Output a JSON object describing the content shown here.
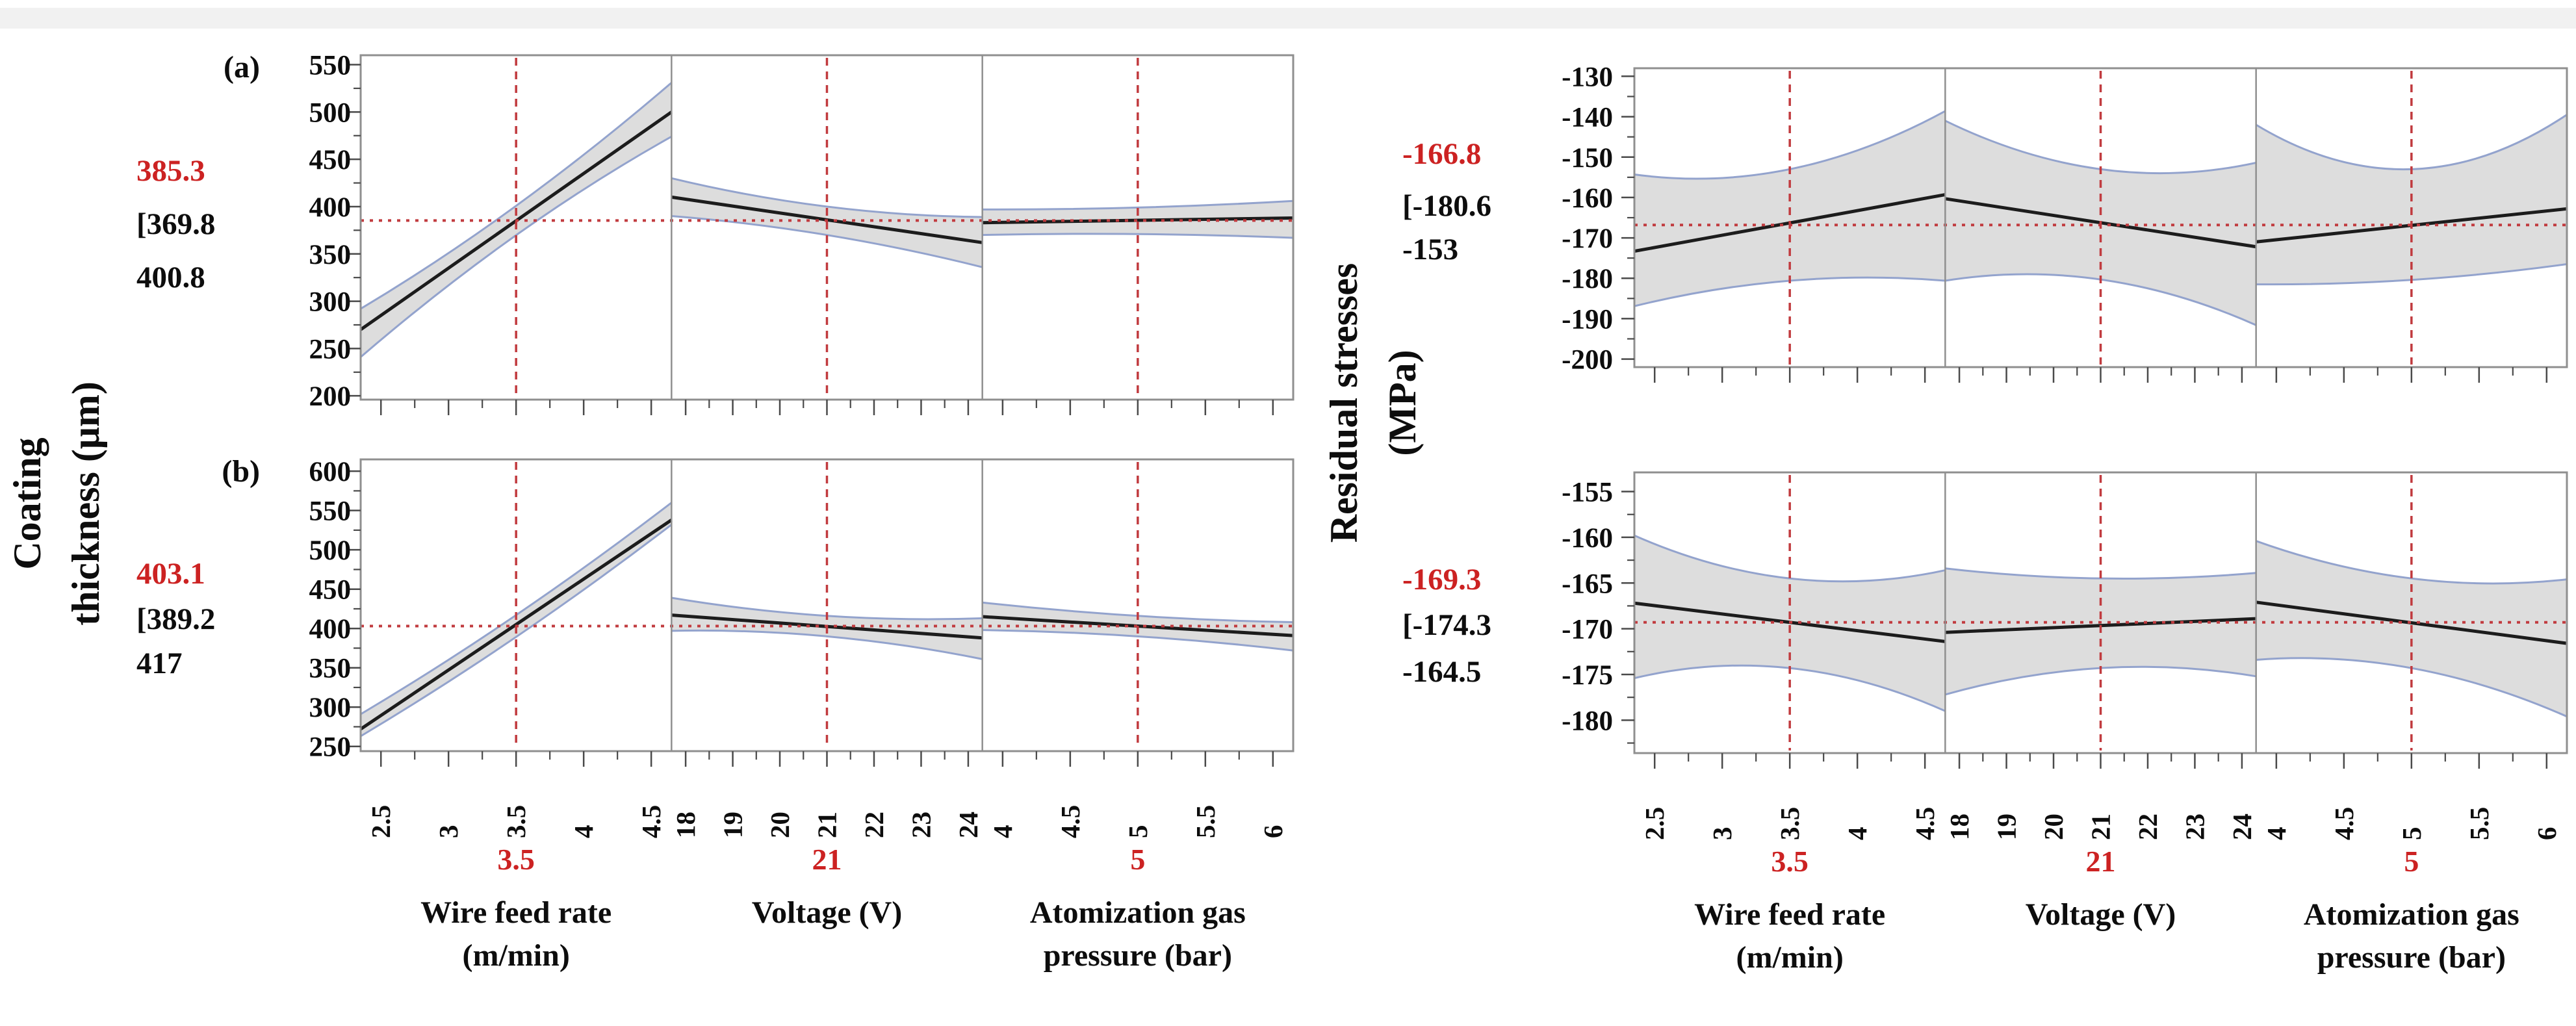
{
  "chart_data": {
    "type": "line",
    "chart_kind": "prediction-profiler",
    "colors": {
      "prediction_red": "#cc2222",
      "crosshair_red": "#c13b3f",
      "band_fill": "#d9d9d9",
      "band_edge": "#93a3cd",
      "fit_line": "#1c1c1c",
      "frame": "#8f8f8f",
      "tick": "#4a4a4a",
      "text": "#0d0d0d",
      "top_strip": "#f1f1f1"
    },
    "figures": [
      {
        "name": "coating-thickness",
        "ylabel_lines": [
          "Coating",
          "thickness (μm)"
        ],
        "factors": [
          {
            "key": "wire-feed-rate",
            "title_lines": [
              "Wire feed rate",
              "(m/min)"
            ],
            "setting_label": "3.5",
            "setting": 3.5,
            "xlim": [
              2.35,
              4.65
            ],
            "ticks": [
              2.5,
              3,
              3.5,
              4,
              4.5
            ],
            "tick_labels": [
              "2.5",
              "3",
              "3.5",
              "4",
              "4.5"
            ]
          },
          {
            "key": "voltage",
            "title_lines": [
              "Voltage (V)"
            ],
            "setting_label": "21",
            "setting": 21,
            "xlim": [
              17.7,
              24.3
            ],
            "ticks": [
              18,
              19,
              20,
              21,
              22,
              23,
              24
            ],
            "tick_labels": [
              "18",
              "19",
              "20",
              "21",
              "22",
              "23",
              "24"
            ]
          },
          {
            "key": "atomization-gas-pressure",
            "title_lines": [
              "Atomization gas",
              "pressure  (bar)"
            ],
            "setting_label": "5",
            "setting": 5,
            "xlim": [
              3.85,
              6.15
            ],
            "ticks": [
              4,
              4.5,
              5,
              5.5,
              6
            ],
            "tick_labels": [
              "4",
              "4.5",
              "5",
              "5.5",
              "6"
            ]
          }
        ],
        "panels": [
          {
            "tag": "(a)",
            "prediction_label": "385.3",
            "prediction": 385.3,
            "ci_label_lines": [
              "[369.8",
              "400.8"
            ],
            "ci": [
              369.8,
              400.8
            ],
            "ylim": [
              196,
              560
            ],
            "yticks": [
              200,
              250,
              300,
              350,
              400,
              450,
              500,
              550
            ],
            "cells": [
              {
                "fit": [
                  270,
                  500
                ],
                "upper": [
                  292,
                  400.8,
                  531
                ],
                "lower": [
                  241,
                  369.8,
                  474
                ]
              },
              {
                "fit": [
                  410,
                  362
                ],
                "upper": [
                  430,
                  400,
                  389
                ],
                "lower": [
                  390,
                  370,
                  336
                ]
              },
              {
                "fit": [
                  383,
                  388
                ],
                "upper": [
                  397,
                  399,
                  406
                ],
                "lower": [
                  370,
                  371,
                  367
                ]
              }
            ]
          },
          {
            "tag": "(b)",
            "prediction_label": "403.1",
            "prediction": 403.1,
            "ci_label_lines": [
              "[389.2",
              "417"
            ],
            "ci": [
              389.2,
              417
            ],
            "ylim": [
              244,
              615
            ],
            "yticks": [
              250,
              300,
              350,
              400,
              450,
              500,
              550,
              600
            ],
            "cells": [
              {
                "fit": [
                  272,
                  538
                ],
                "upper": [
                  291,
                  417,
                  560
                ],
                "lower": [
                  263,
                  389.2,
                  532
                ]
              },
              {
                "fit": [
                  417,
                  388
                ],
                "upper": [
                  439,
                  416,
                  413
                ],
                "lower": [
                  397,
                  390,
                  361
                ]
              },
              {
                "fit": [
                  415,
                  391
                ],
                "upper": [
                  433,
                  416,
                  408
                ],
                "lower": [
                  398,
                  390,
                  372
                ]
              }
            ]
          }
        ]
      },
      {
        "name": "residual-stresses",
        "ylabel_lines": [
          "Residual stresses",
          "(MPa)"
        ],
        "factors": [
          {
            "key": "wire-feed-rate",
            "title_lines": [
              "Wire feed rate",
              "(m/min)"
            ],
            "setting_label": "3.5",
            "setting": 3.5,
            "xlim": [
              2.35,
              4.65
            ],
            "ticks": [
              2.5,
              3,
              3.5,
              4,
              4.5
            ],
            "tick_labels": [
              "2.5",
              "3",
              "3.5",
              "4",
              "4.5"
            ]
          },
          {
            "key": "voltage",
            "title_lines": [
              "Voltage (V)"
            ],
            "setting_label": "21",
            "setting": 21,
            "xlim": [
              17.7,
              24.3
            ],
            "ticks": [
              18,
              19,
              20,
              21,
              22,
              23,
              24
            ],
            "tick_labels": [
              "18",
              "19",
              "20",
              "21",
              "22",
              "23",
              "24"
            ]
          },
          {
            "key": "atomization-gas-pressure",
            "title_lines": [
              "Atomization gas",
              "pressure  (bar)"
            ],
            "setting_label": "5",
            "setting": 5,
            "xlim": [
              3.85,
              6.15
            ],
            "ticks": [
              4,
              4.5,
              5,
              5.5,
              6
            ],
            "tick_labels": [
              "4",
              "4.5",
              "5",
              "5.5",
              "6"
            ]
          }
        ],
        "panels": [
          {
            "tag": "",
            "prediction_label": "-166.8",
            "prediction": -166.8,
            "ci_label_lines": [
              "[-180.6",
              "-153"
            ],
            "ci": [
              -180.6,
              -153
            ],
            "ylim": [
              -202,
              -128
            ],
            "yticks": [
              -200,
              -190,
              -180,
              -170,
              -160,
              -150,
              -140,
              -130
            ],
            "cells": [
              {
                "fit": [
                  -173.3,
                  -159.3
                ],
                "upper": [
                  -154.3,
                  -153,
                  -138.6
                ],
                "lower": [
                  -186.9,
                  -180.6,
                  -180.6
                ]
              },
              {
                "fit": [
                  -160.3,
                  -172.2
                ],
                "upper": [
                  -141,
                  -153,
                  -151.4
                ],
                "lower": [
                  -180.6,
                  -180.3,
                  -191.6
                ]
              },
              {
                "fit": [
                  -171,
                  -162.8
                ],
                "upper": [
                  -142,
                  -153,
                  -139.5
                ],
                "lower": [
                  -181.5,
                  -180.4,
                  -176.5
                ]
              }
            ]
          },
          {
            "tag": "",
            "prediction_label": "-169.3",
            "prediction": -169.3,
            "ci_label_lines": [
              "[-174.3",
              "-164.5"
            ],
            "ci": [
              -174.3,
              -164.5
            ],
            "ylim": [
              -183.6,
              -152.9
            ],
            "yticks": [
              -180,
              -175,
              -170,
              -165,
              -160,
              -155
            ],
            "cells": [
              {
                "fit": [
                  -167.2,
                  -171.4
                ],
                "upper": [
                  -159.8,
                  -164.5,
                  -163.6
                ],
                "lower": [
                  -175.4,
                  -174.3,
                  -179
                ]
              },
              {
                "fit": [
                  -170.4,
                  -168.9
                ],
                "upper": [
                  -163.4,
                  -164.5,
                  -163.9
                ],
                "lower": [
                  -177.2,
                  -174.3,
                  -175.2
                ]
              },
              {
                "fit": [
                  -167.1,
                  -171.6
                ],
                "upper": [
                  -160.4,
                  -164.5,
                  -164.6
                ],
                "lower": [
                  -173.4,
                  -174.3,
                  -179.6
                ]
              }
            ]
          }
        ]
      }
    ]
  }
}
